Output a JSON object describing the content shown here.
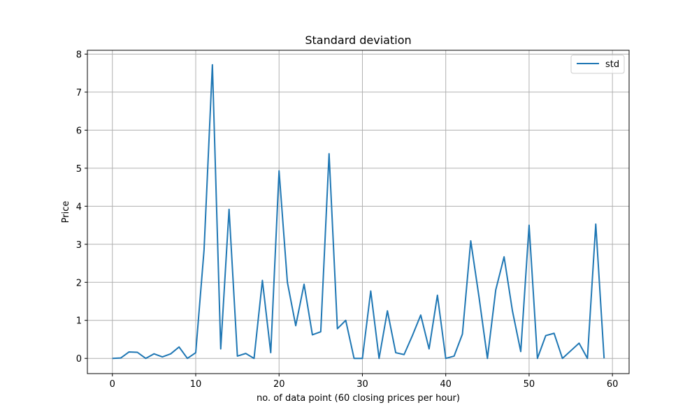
{
  "chart_data": {
    "type": "line",
    "title": "Standard deviation",
    "xlabel": "no. of data point (60 closing prices per hour)",
    "ylabel": "Price",
    "xlim": [
      -3,
      62
    ],
    "ylim": [
      -0.4,
      8.1
    ],
    "xticks": [
      0,
      10,
      20,
      30,
      40,
      50,
      60
    ],
    "yticks": [
      0,
      1,
      2,
      3,
      4,
      5,
      6,
      7,
      8
    ],
    "grid": true,
    "legend_position": "top-right",
    "series": [
      {
        "name": "std",
        "color": "#1f77b4",
        "x": [
          0,
          1,
          2,
          3,
          4,
          5,
          6,
          7,
          8,
          9,
          10,
          11,
          12,
          13,
          14,
          15,
          16,
          17,
          18,
          19,
          20,
          21,
          22,
          23,
          24,
          25,
          26,
          27,
          28,
          29,
          30,
          31,
          32,
          33,
          34,
          35,
          36,
          37,
          38,
          39,
          40,
          41,
          42,
          43,
          44,
          45,
          46,
          47,
          48,
          49,
          50,
          51,
          52,
          53,
          54,
          55,
          56,
          57,
          58,
          59
        ],
        "y": [
          0.0,
          0.01,
          0.17,
          0.16,
          0.0,
          0.12,
          0.04,
          0.12,
          0.3,
          0.0,
          0.15,
          2.85,
          7.72,
          0.25,
          3.92,
          0.06,
          0.13,
          0.0,
          2.05,
          0.15,
          4.93,
          2.0,
          0.86,
          1.95,
          0.62,
          0.7,
          5.38,
          0.78,
          1.0,
          0.0,
          0.0,
          1.77,
          0.0,
          1.25,
          0.15,
          0.1,
          0.6,
          1.14,
          0.25,
          1.66,
          0.0,
          0.06,
          0.64,
          3.09,
          1.6,
          0.0,
          1.8,
          2.67,
          1.25,
          0.18,
          3.5,
          0.0,
          0.6,
          0.66,
          0.0,
          0.2,
          0.4,
          0.0,
          3.53,
          0.0
        ]
      }
    ]
  }
}
